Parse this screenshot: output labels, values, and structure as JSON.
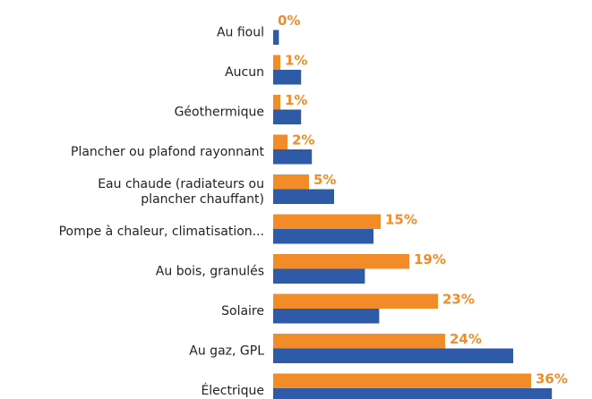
{
  "chart_data": {
    "type": "bar",
    "orientation": "horizontal",
    "categories": [
      "Au fioul",
      "Aucun",
      "Géothermique",
      "Plancher ou plafond rayonnant",
      "Eau chaude (radiateurs ou\nplancher chauffant)",
      "Pompe à chaleur, climatisation...",
      "Au bois, granulés",
      "Solaire",
      "Au gaz, GPL",
      "Électrique"
    ],
    "series": [
      {
        "color": "#f28c28",
        "values": [
          0,
          1,
          1,
          2,
          5,
          15,
          19,
          23,
          24,
          36
        ],
        "value_labels": [
          "0%",
          "1%",
          "1%",
          "2%",
          "5%",
          "15%",
          "19%",
          "23%",
          "24%",
          "36%"
        ]
      },
      {
        "color": "#2f5aa8",
        "values": [
          0.8,
          3.9,
          3.9,
          5.4,
          8.5,
          14,
          12.8,
          14.8,
          33.5,
          38.9
        ]
      }
    ],
    "xlim": [
      0,
      40
    ]
  }
}
